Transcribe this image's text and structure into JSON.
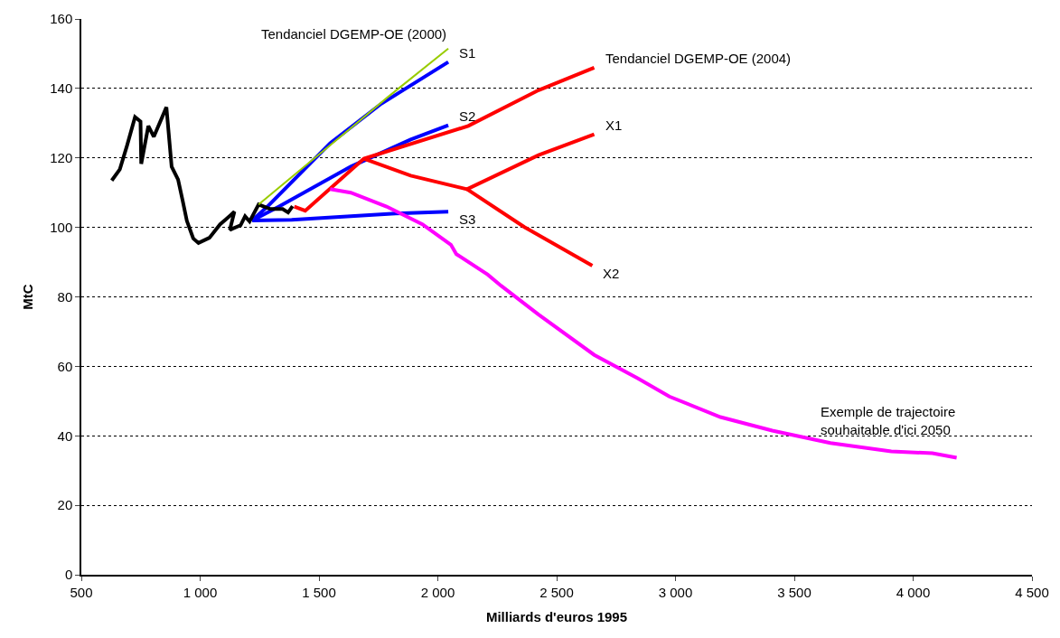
{
  "chart_data": {
    "type": "line",
    "xlabel": "Milliards d'euros 1995",
    "ylabel": "MtC",
    "xlim": [
      500,
      4500
    ],
    "xticks": [
      500,
      {
        "value": 1000,
        "label": "1 000"
      },
      {
        "value": 1500,
        "label": "1 500"
      },
      {
        "value": 2000,
        "label": "2 000"
      },
      {
        "value": 2500,
        "label": "2 500"
      },
      {
        "value": 3000,
        "label": "3 000"
      },
      {
        "value": 3500,
        "label": "3 500"
      },
      {
        "value": 4000,
        "label": "4 000"
      },
      {
        "value": 4500,
        "label": "4 500"
      }
    ],
    "ylim": [
      0,
      160
    ],
    "yticks": [
      0,
      20,
      40,
      60,
      80,
      100,
      120,
      140,
      160
    ],
    "grid": "y",
    "legend": false,
    "marker": "none",
    "line_style": "solid",
    "series": [
      {
        "name": "Tendanciel DGEMP-OE (2000)",
        "color": "#99cc00",
        "x": [
          1246,
          1347,
          1634,
          1784,
          2044
        ],
        "values": [
          106.6,
          112.3,
          128.6,
          137.2,
          151.5
        ]
      },
      {
        "name": "S1",
        "color": "#0000ff",
        "x": [
          1219,
          1283,
          1547,
          1762,
          2044
        ],
        "values": [
          102,
          106,
          124.2,
          135.6,
          147.6
        ]
      },
      {
        "name": "S2",
        "color": "#0000ff",
        "x": [
          1219,
          1332,
          1634,
          1886,
          2044
        ],
        "values": [
          102,
          106,
          117.5,
          125.3,
          129.4
        ]
      },
      {
        "name": "S3",
        "color": "#0000ff",
        "x": [
          1219,
          1385,
          1634,
          1822,
          2044
        ],
        "values": [
          102,
          102.2,
          103.2,
          104,
          104.5
        ]
      },
      {
        "name": "Tendanciel DGEMP-OE (2004)",
        "color": "#ff0000",
        "x": [
          1396,
          1442,
          1689,
          2128,
          2424,
          2658
        ],
        "values": [
          106,
          104.8,
          119.8,
          129.2,
          139.5,
          146
        ]
      },
      {
        "name": "X1",
        "color": "#ff0000",
        "x": [
          1689,
          1886,
          2123,
          2424,
          2658
        ],
        "values": [
          119.8,
          114.9,
          111,
          120.8,
          126.8
        ]
      },
      {
        "name": "X2",
        "color": "#ff0000",
        "x": [
          2123,
          2364,
          2650
        ],
        "values": [
          111,
          100.1,
          89
        ]
      },
      {
        "name": "Exemple de trajectoire\nsouhaitable d'ici 2050",
        "color": "#ff00ff",
        "x": [
          1547,
          1634,
          1784,
          1935,
          2055,
          2078,
          2210,
          2266,
          2424,
          2658,
          2842,
          2974,
          3189,
          3407,
          3652,
          3908,
          4081,
          4183
        ],
        "values": [
          111,
          110,
          106,
          100.9,
          95,
          92.3,
          86.4,
          83.2,
          74.9,
          63.3,
          56.5,
          51.3,
          45.4,
          41.5,
          37.9,
          35.5,
          35,
          33.7
        ]
      },
      {
        "color": "#000000",
        "x": [
          628,
          662,
          692,
          726,
          749,
          752,
          782,
          805,
          858,
          880,
          907,
          926,
          944,
          971,
          993,
          1039,
          1084,
          1106,
          1144,
          1125,
          1170,
          1189,
          1208,
          1246,
          1295,
          1347,
          1370,
          1389
        ],
        "values": [
          113.5,
          116.7,
          123.5,
          131.8,
          130.5,
          118.3,
          129.2,
          126.1,
          134.6,
          117.5,
          113.8,
          107.8,
          101.9,
          96.8,
          95.5,
          97.0,
          100.9,
          102.2,
          104.5,
          99.3,
          100.6,
          103.2,
          101.7,
          106.6,
          105.3,
          105.3,
          104.3,
          106.1
        ]
      }
    ]
  }
}
